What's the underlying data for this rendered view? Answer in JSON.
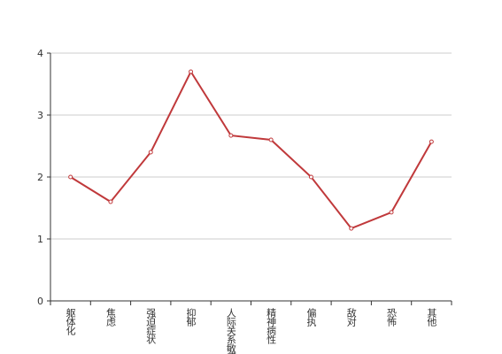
{
  "chart_data": {
    "type": "line",
    "categories": [
      "躯体化",
      "焦虑",
      "强迫症状",
      "抑郁",
      "人际关系敏感",
      "精神病性",
      "偏执",
      "敌对",
      "恐怖",
      "其他"
    ],
    "series": [
      {
        "color": "#c0393b",
        "values": [
          2.0,
          1.6,
          2.4,
          3.7,
          2.67,
          2.6,
          2.0,
          1.17,
          1.43,
          2.57
        ]
      }
    ],
    "ylim": [
      0,
      4
    ],
    "yticks": [
      0,
      1,
      2,
      3,
      4
    ],
    "grid": true
  }
}
